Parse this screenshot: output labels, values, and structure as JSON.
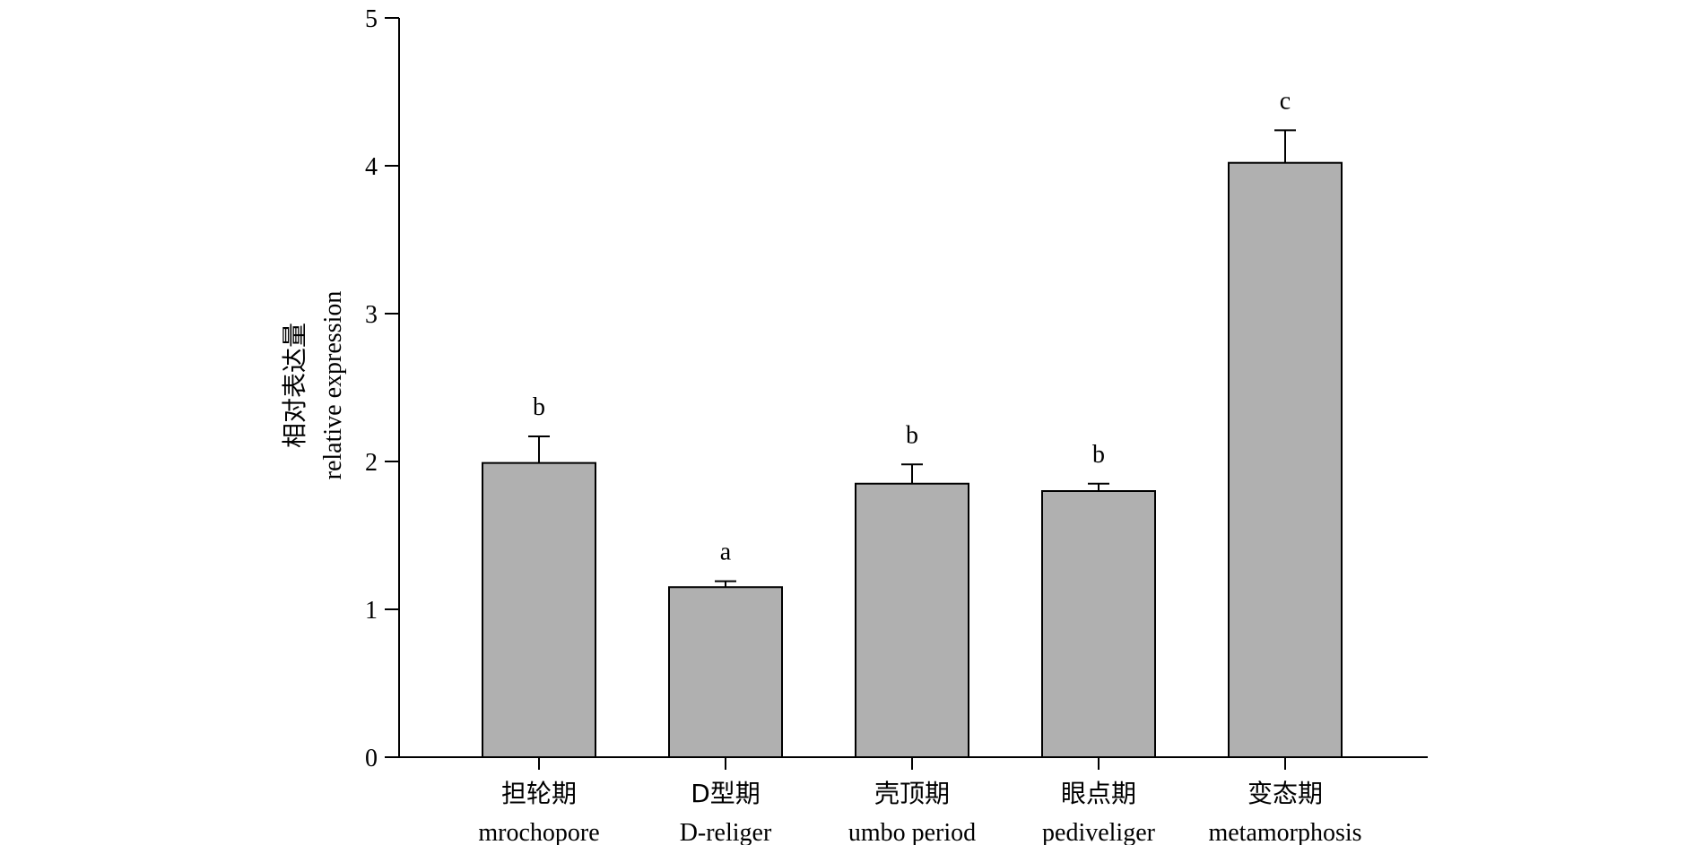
{
  "chart_data": {
    "type": "bar",
    "categories": [
      {
        "zh": "担轮期",
        "en": "mrochopore"
      },
      {
        "zh": "D型期",
        "en": "D-religer"
      },
      {
        "zh": "壳顶期",
        "en": "umbo period"
      },
      {
        "zh": "眼点期",
        "en": "pediveliger"
      },
      {
        "zh": "变态期",
        "en": "metamorphosis"
      }
    ],
    "values": [
      1.99,
      1.15,
      1.85,
      1.8,
      4.02
    ],
    "errors": [
      0.18,
      0.04,
      0.13,
      0.05,
      0.22
    ],
    "significance": [
      "b",
      "a",
      "b",
      "b",
      "c"
    ],
    "ylabel": {
      "zh": "相对表达量",
      "en": "relative expression"
    },
    "xlabel": "",
    "title": "",
    "ylim": [
      0,
      5
    ],
    "yticks": [
      "0",
      "1",
      "2",
      "3",
      "4",
      "5"
    ],
    "bar_color": "#b0b0b0",
    "grid": false
  }
}
